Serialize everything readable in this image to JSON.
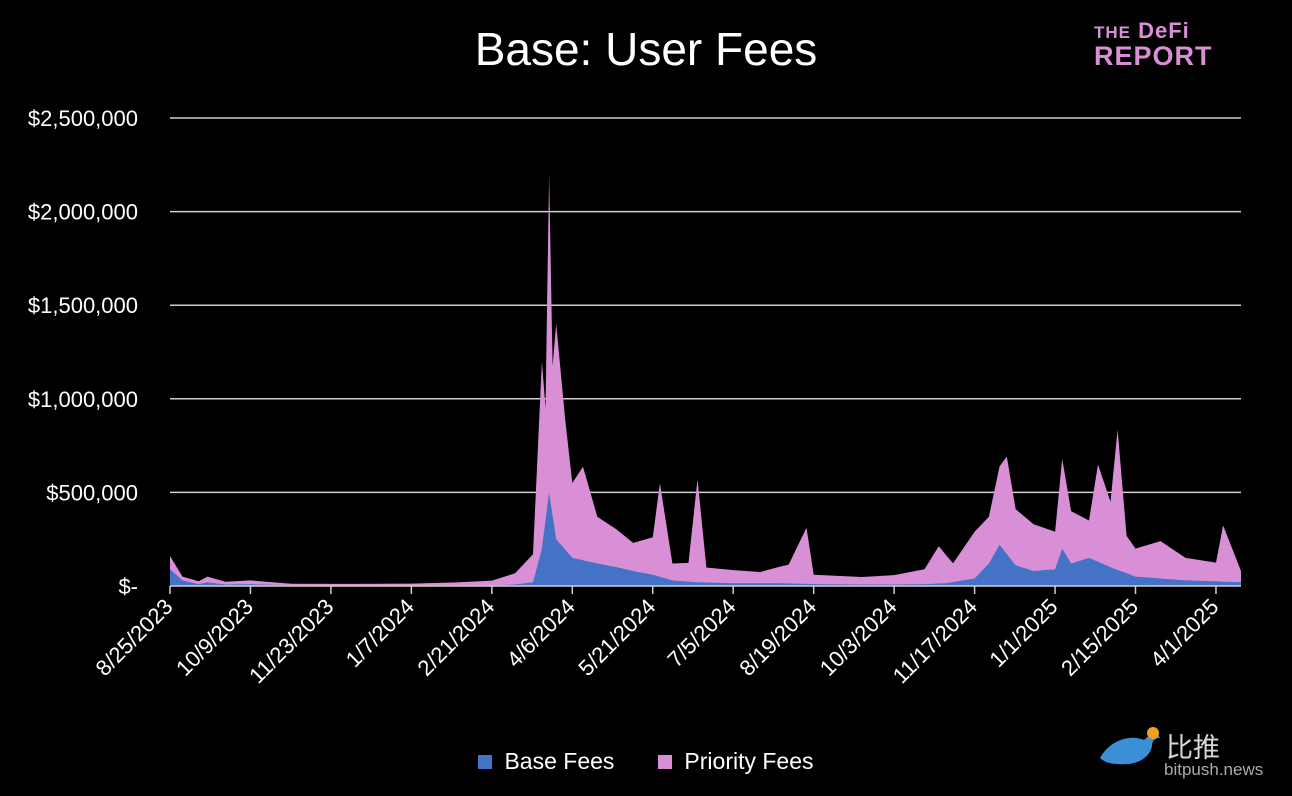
{
  "chart_data": {
    "type": "area",
    "stacked": true,
    "title": "Base: User Fees",
    "xlabel": "",
    "ylabel": "",
    "y_tick_labels": [
      "$-",
      "$500,000",
      "$1,000,000",
      "$1,500,000",
      "$2,000,000",
      "$2,500,000"
    ],
    "x_tick_labels": [
      "8/25/2023",
      "10/9/2023",
      "11/23/2023",
      "1/7/2024",
      "2/21/2024",
      "4/6/2024",
      "5/21/2024",
      "7/5/2024",
      "8/19/2024",
      "10/3/2024",
      "11/17/2024",
      "1/1/2025",
      "2/15/2025",
      "4/1/2025"
    ],
    "ylim": [
      0,
      2500000
    ],
    "xlim": [
      "2023-08-25",
      "2025-04-15"
    ],
    "grid": true,
    "legend_position": "bottom",
    "series": [
      {
        "name": "Base Fees",
        "color": "#4472c4",
        "points": [
          [
            "2023-08-25",
            90000
          ],
          [
            "2023-09-01",
            30000
          ],
          [
            "2023-09-10",
            10000
          ],
          [
            "2023-09-15",
            20000
          ],
          [
            "2023-09-25",
            8000
          ],
          [
            "2023-10-09",
            10000
          ],
          [
            "2023-11-01",
            4000
          ],
          [
            "2023-12-01",
            3000
          ],
          [
            "2024-01-07",
            3000
          ],
          [
            "2024-02-01",
            4000
          ],
          [
            "2024-02-21",
            4000
          ],
          [
            "2024-03-05",
            8000
          ],
          [
            "2024-03-15",
            20000
          ],
          [
            "2024-03-20",
            200000
          ],
          [
            "2024-03-24",
            500000
          ],
          [
            "2024-03-28",
            250000
          ],
          [
            "2024-04-06",
            150000
          ],
          [
            "2024-04-20",
            120000
          ],
          [
            "2024-05-01",
            100000
          ],
          [
            "2024-05-10",
            80000
          ],
          [
            "2024-05-21",
            60000
          ],
          [
            "2024-06-01",
            30000
          ],
          [
            "2024-06-15",
            20000
          ],
          [
            "2024-07-05",
            15000
          ],
          [
            "2024-08-01",
            15000
          ],
          [
            "2024-08-19",
            10000
          ],
          [
            "2024-09-15",
            8000
          ],
          [
            "2024-10-03",
            8000
          ],
          [
            "2024-10-20",
            10000
          ],
          [
            "2024-11-01",
            15000
          ],
          [
            "2024-11-17",
            40000
          ],
          [
            "2024-11-25",
            120000
          ],
          [
            "2024-12-01",
            220000
          ],
          [
            "2024-12-10",
            110000
          ],
          [
            "2024-12-20",
            80000
          ],
          [
            "2025-01-01",
            90000
          ],
          [
            "2025-01-05",
            200000
          ],
          [
            "2025-01-10",
            120000
          ],
          [
            "2025-01-20",
            150000
          ],
          [
            "2025-02-01",
            100000
          ],
          [
            "2025-02-15",
            50000
          ],
          [
            "2025-03-01",
            40000
          ],
          [
            "2025-03-15",
            30000
          ],
          [
            "2025-04-01",
            25000
          ],
          [
            "2025-04-15",
            20000
          ]
        ]
      },
      {
        "name": "Priority Fees",
        "color": "#d98fd6",
        "points": [
          [
            "2023-08-25",
            70000
          ],
          [
            "2023-09-01",
            20000
          ],
          [
            "2023-09-10",
            15000
          ],
          [
            "2023-09-15",
            30000
          ],
          [
            "2023-09-25",
            15000
          ],
          [
            "2023-10-09",
            20000
          ],
          [
            "2023-11-01",
            8000
          ],
          [
            "2023-12-01",
            8000
          ],
          [
            "2024-01-07",
            10000
          ],
          [
            "2024-02-01",
            15000
          ],
          [
            "2024-02-21",
            25000
          ],
          [
            "2024-03-05",
            60000
          ],
          [
            "2024-03-15",
            150000
          ],
          [
            "2024-03-20",
            1000000
          ],
          [
            "2024-03-22",
            600000
          ],
          [
            "2024-03-24",
            1700000
          ],
          [
            "2024-03-26",
            800000
          ],
          [
            "2024-03-28",
            1150000
          ],
          [
            "2024-04-02",
            700000
          ],
          [
            "2024-04-06",
            400000
          ],
          [
            "2024-04-12",
            500000
          ],
          [
            "2024-04-20",
            250000
          ],
          [
            "2024-05-01",
            200000
          ],
          [
            "2024-05-10",
            150000
          ],
          [
            "2024-05-21",
            200000
          ],
          [
            "2024-05-25",
            500000
          ],
          [
            "2024-06-01",
            90000
          ],
          [
            "2024-06-10",
            100000
          ],
          [
            "2024-06-15",
            550000
          ],
          [
            "2024-06-20",
            80000
          ],
          [
            "2024-07-05",
            70000
          ],
          [
            "2024-07-20",
            60000
          ],
          [
            "2024-08-05",
            100000
          ],
          [
            "2024-08-15",
            300000
          ],
          [
            "2024-08-19",
            50000
          ],
          [
            "2024-09-15",
            40000
          ],
          [
            "2024-10-03",
            50000
          ],
          [
            "2024-10-20",
            80000
          ],
          [
            "2024-10-28",
            200000
          ],
          [
            "2024-11-05",
            100000
          ],
          [
            "2024-11-17",
            250000
          ],
          [
            "2024-11-25",
            250000
          ],
          [
            "2024-12-01",
            420000
          ],
          [
            "2024-12-05",
            520000
          ],
          [
            "2024-12-10",
            300000
          ],
          [
            "2024-12-20",
            250000
          ],
          [
            "2025-01-01",
            200000
          ],
          [
            "2025-01-05",
            480000
          ],
          [
            "2025-01-10",
            280000
          ],
          [
            "2025-01-20",
            200000
          ],
          [
            "2025-01-25",
            520000
          ],
          [
            "2025-02-01",
            350000
          ],
          [
            "2025-02-05",
            750000
          ],
          [
            "2025-02-10",
            200000
          ],
          [
            "2025-02-15",
            150000
          ],
          [
            "2025-03-01",
            200000
          ],
          [
            "2025-03-15",
            120000
          ],
          [
            "2025-04-01",
            100000
          ],
          [
            "2025-04-05",
            300000
          ],
          [
            "2025-04-15",
            60000
          ]
        ]
      }
    ]
  },
  "logo": {
    "line1_a": "THE",
    "line1_b": "DeFi",
    "line2": "REPORT"
  },
  "watermark": {
    "cn_text": "比推",
    "url": "bitpush.news"
  }
}
